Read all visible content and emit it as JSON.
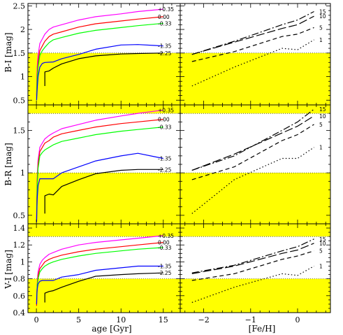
{
  "colors": {
    "band": "#ffff00",
    "metallicity_series": {
      "+0.35": "#ff00ff",
      "0.00": "#ff0000",
      "-0.33": "#00ff00",
      "-1.35": "#0000ff",
      "-2.25": "#000000"
    }
  },
  "chart_data": [
    {
      "type": "line",
      "panel": "B-I vs age",
      "xlabel": "",
      "ylabel": "B-I [mag]",
      "xlim": [
        -1,
        17
      ],
      "ylim": [
        0.4,
        2.55
      ],
      "xticks": [
        0,
        5,
        10,
        15
      ],
      "yticks": [
        0.5,
        1,
        1.5,
        2,
        2.5
      ],
      "ytick_labels": [
        "0.5",
        "1",
        "1.5",
        "2",
        "2.5"
      ],
      "band": [
        0.4,
        1.5
      ],
      "series": [
        {
          "name": "+0.35",
          "color": "#ff00ff",
          "x": [
            0.02,
            0.05,
            0.1,
            0.2,
            0.4,
            0.7,
            1,
            1.5,
            2,
            3,
            5,
            7,
            10,
            12,
            15
          ],
          "y": [
            0.6,
            0.9,
            1.2,
            1.45,
            1.7,
            1.8,
            1.9,
            2.0,
            2.05,
            2.1,
            2.2,
            2.27,
            2.33,
            2.38,
            2.43
          ]
        },
        {
          "name": "0.00",
          "color": "#ff0000",
          "x": [
            0.02,
            0.05,
            0.1,
            0.2,
            0.4,
            0.7,
            1,
            1.5,
            2,
            3,
            5,
            7,
            10,
            12,
            15
          ],
          "y": [
            0.55,
            0.8,
            1.05,
            1.3,
            1.55,
            1.65,
            1.75,
            1.85,
            1.9,
            1.95,
            2.05,
            2.12,
            2.18,
            2.22,
            2.27
          ]
        },
        {
          "name": "-0.33",
          "color": "#00ff00",
          "x": [
            0.02,
            0.05,
            0.1,
            0.2,
            0.4,
            0.7,
            1,
            1.5,
            2,
            3,
            5,
            7,
            10,
            12,
            15
          ],
          "y": [
            0.5,
            0.7,
            0.95,
            1.2,
            1.45,
            1.55,
            1.62,
            1.72,
            1.78,
            1.83,
            1.92,
            1.98,
            2.04,
            2.08,
            2.13
          ]
        },
        {
          "name": "-1.35",
          "color": "#0000ff",
          "x": [
            0.02,
            0.05,
            0.1,
            0.2,
            0.4,
            0.7,
            1,
            2,
            3,
            5,
            7,
            10,
            12,
            14,
            15
          ],
          "y": [
            0.5,
            0.6,
            0.75,
            1.0,
            1.2,
            1.28,
            1.3,
            1.31,
            1.38,
            1.47,
            1.58,
            1.67,
            1.68,
            1.66,
            1.65
          ]
        },
        {
          "name": "-2.25",
          "color": "#000000",
          "x": [
            1,
            1,
            1.5,
            2,
            3,
            5,
            7,
            10,
            12,
            15
          ],
          "y": [
            0.8,
            1.1,
            1.12,
            1.18,
            1.27,
            1.38,
            1.44,
            1.48,
            1.49,
            1.5
          ]
        }
      ]
    },
    {
      "type": "line",
      "panel": "B-I vs [Fe/H]",
      "xlabel": "",
      "ylabel": "",
      "xlim": [
        -2.5,
        0.7
      ],
      "ylim": [
        0.4,
        2.55
      ],
      "xticks": [
        -2,
        -1,
        0
      ],
      "band": [
        0.4,
        1.5
      ],
      "series": [
        {
          "name": "15",
          "dash": "dashdot",
          "x": [
            -2.25,
            -1.35,
            -0.33,
            0,
            0.35
          ],
          "y": [
            1.47,
            1.75,
            2.1,
            2.2,
            2.38
          ]
        },
        {
          "name": "10",
          "dash": "longdash",
          "x": [
            -2.25,
            -1.35,
            -0.33,
            0,
            0.35
          ],
          "y": [
            1.47,
            1.73,
            2.02,
            2.1,
            2.28
          ]
        },
        {
          "name": "5",
          "dash": "dashed",
          "x": [
            -2.25,
            -1.35,
            -0.33,
            0,
            0.35
          ],
          "y": [
            1.32,
            1.53,
            1.85,
            1.9,
            2.04
          ]
        },
        {
          "name": "1",
          "dash": "dotted",
          "x": [
            -2.25,
            -1.35,
            -0.33,
            0,
            0.35
          ],
          "y": [
            0.8,
            1.2,
            1.6,
            1.57,
            1.78
          ]
        }
      ]
    },
    {
      "type": "line",
      "panel": "B-R vs age",
      "xlabel": "",
      "ylabel": "B-R [mag]",
      "xlim": [
        -1,
        17
      ],
      "ylim": [
        0.4,
        1.8
      ],
      "xticks": [
        0,
        5,
        10,
        15
      ],
      "yticks": [
        0.5,
        1,
        1.5
      ],
      "ytick_labels": [
        "0.5",
        "1",
        "1.5"
      ],
      "band": [
        0.4,
        1.0
      ],
      "band_top": [
        1.7,
        1.8
      ],
      "series": [
        {
          "name": "+0.35",
          "color": "#ff00ff",
          "x": [
            0.02,
            0.05,
            0.1,
            0.2,
            0.4,
            0.7,
            1,
            1.5,
            2,
            3,
            5,
            7,
            10,
            12,
            15
          ],
          "y": [
            0.42,
            0.7,
            0.95,
            1.15,
            1.3,
            1.35,
            1.4,
            1.44,
            1.47,
            1.52,
            1.57,
            1.62,
            1.67,
            1.7,
            1.74
          ]
        },
        {
          "name": "0.00",
          "color": "#ff0000",
          "x": [
            0.02,
            0.05,
            0.1,
            0.2,
            0.4,
            0.7,
            1,
            1.5,
            2,
            3,
            5,
            7,
            10,
            12,
            15
          ],
          "y": [
            0.42,
            0.65,
            0.9,
            1.1,
            1.25,
            1.3,
            1.35,
            1.38,
            1.42,
            1.46,
            1.5,
            1.54,
            1.58,
            1.6,
            1.63
          ]
        },
        {
          "name": "-0.33",
          "color": "#00ff00",
          "x": [
            0.02,
            0.05,
            0.1,
            0.2,
            0.4,
            0.7,
            1,
            1.5,
            2,
            3,
            5,
            7,
            10,
            12,
            15
          ],
          "y": [
            0.42,
            0.6,
            0.85,
            1.05,
            1.2,
            1.24,
            1.27,
            1.3,
            1.33,
            1.37,
            1.41,
            1.45,
            1.49,
            1.51,
            1.54
          ]
        },
        {
          "name": "-1.35",
          "color": "#0000ff",
          "x": [
            0.02,
            0.05,
            0.1,
            0.2,
            0.4,
            0.7,
            1,
            2,
            3,
            5,
            7,
            10,
            12,
            14,
            15
          ],
          "y": [
            0.42,
            0.55,
            0.7,
            0.85,
            0.93,
            0.93,
            0.93,
            0.93,
            1.0,
            1.07,
            1.14,
            1.2,
            1.23,
            1.19,
            1.17
          ]
        },
        {
          "name": "-2.25",
          "color": "#000000",
          "x": [
            1,
            1,
            1.5,
            2,
            3,
            5,
            7,
            10,
            12,
            15
          ],
          "y": [
            0.52,
            0.73,
            0.75,
            0.74,
            0.84,
            0.92,
            0.99,
            1.03,
            1.04,
            1.04
          ]
        }
      ]
    },
    {
      "type": "line",
      "panel": "B-R vs [Fe/H]",
      "xlabel": "",
      "ylabel": "",
      "xlim": [
        -2.5,
        0.7
      ],
      "ylim": [
        0.4,
        1.8
      ],
      "xticks": [
        -2,
        -1,
        0
      ],
      "band": [
        0.4,
        1.0
      ],
      "band_top": [
        1.7,
        1.8
      ],
      "series": [
        {
          "name": "15",
          "dash": "dashdot",
          "x": [
            -2.25,
            -1.35,
            -0.33,
            0,
            0.35
          ],
          "y": [
            1.03,
            1.2,
            1.5,
            1.6,
            1.75
          ]
        },
        {
          "name": "10",
          "dash": "longdash",
          "x": [
            -2.25,
            -1.35,
            -0.33,
            0,
            0.35
          ],
          "y": [
            1.03,
            1.22,
            1.47,
            1.55,
            1.67
          ]
        },
        {
          "name": "5",
          "dash": "dashed",
          "x": [
            -2.25,
            -1.35,
            -0.33,
            0,
            0.35
          ],
          "y": [
            0.92,
            1.07,
            1.38,
            1.45,
            1.57
          ]
        },
        {
          "name": "1",
          "dash": "dotted",
          "x": [
            -2.25,
            -1.35,
            -0.33,
            0,
            0.35
          ],
          "y": [
            0.52,
            0.92,
            1.17,
            1.17,
            1.3
          ]
        }
      ]
    },
    {
      "type": "line",
      "panel": "V-I vs age",
      "xlabel": "age [Gyr]",
      "ylabel": "V-I [mag]",
      "xlim": [
        -1,
        17
      ],
      "ylim": [
        0.4,
        1.45
      ],
      "xticks": [
        0,
        5,
        10,
        15
      ],
      "yticks": [
        0.4,
        0.6,
        0.8,
        1,
        1.2,
        1.4
      ],
      "ytick_labels": [
        "0.4",
        "0.6",
        "0.8",
        "1",
        "1.2",
        "1.4"
      ],
      "xtick_labels": [
        "0",
        "5",
        "10",
        "15"
      ],
      "band": [
        0.4,
        0.8
      ],
      "band_top": [
        1.3,
        1.45
      ],
      "series": [
        {
          "name": "+0.35",
          "color": "#ff00ff",
          "x": [
            0.02,
            0.05,
            0.1,
            0.2,
            0.4,
            0.7,
            1,
            1.5,
            2,
            3,
            5,
            7,
            10,
            12,
            15
          ],
          "y": [
            0.5,
            0.62,
            0.75,
            0.88,
            0.97,
            1.02,
            1.05,
            1.09,
            1.11,
            1.15,
            1.2,
            1.23,
            1.26,
            1.28,
            1.31
          ]
        },
        {
          "name": "0.00",
          "color": "#ff0000",
          "x": [
            0.02,
            0.05,
            0.1,
            0.2,
            0.4,
            0.7,
            1,
            1.5,
            2,
            3,
            5,
            7,
            10,
            12,
            15
          ],
          "y": [
            0.48,
            0.6,
            0.72,
            0.84,
            0.92,
            0.96,
            1.0,
            1.03,
            1.05,
            1.08,
            1.12,
            1.15,
            1.18,
            1.2,
            1.23
          ]
        },
        {
          "name": "-0.33",
          "color": "#00ff00",
          "x": [
            0.02,
            0.05,
            0.1,
            0.2,
            0.4,
            0.7,
            1,
            1.5,
            2,
            3,
            5,
            7,
            10,
            12,
            15
          ],
          "y": [
            0.55,
            0.62,
            0.72,
            0.8,
            0.88,
            0.92,
            0.95,
            0.98,
            1.0,
            1.03,
            1.07,
            1.1,
            1.13,
            1.15,
            1.17
          ]
        },
        {
          "name": "-1.35",
          "color": "#0000ff",
          "x": [
            0.02,
            0.05,
            0.1,
            0.2,
            0.4,
            0.7,
            1,
            2,
            3,
            5,
            7,
            10,
            12,
            14,
            15
          ],
          "y": [
            0.5,
            0.6,
            0.68,
            0.74,
            0.77,
            0.78,
            0.78,
            0.78,
            0.82,
            0.85,
            0.9,
            0.93,
            0.95,
            0.95,
            0.95
          ]
        },
        {
          "name": "-2.25",
          "color": "#000000",
          "x": [
            1,
            1,
            1.5,
            2,
            3,
            5,
            7,
            10,
            12,
            15
          ],
          "y": [
            0.52,
            0.63,
            0.65,
            0.66,
            0.7,
            0.77,
            0.83,
            0.85,
            0.86,
            0.87
          ]
        }
      ]
    },
    {
      "type": "line",
      "panel": "V-I vs [Fe/H]",
      "xlabel": "[Fe/H]",
      "ylabel": "",
      "xlim": [
        -2.5,
        0.7
      ],
      "ylim": [
        0.4,
        1.45
      ],
      "xticks": [
        -2,
        -1,
        0
      ],
      "xtick_labels": [
        "−2",
        "−1",
        "0"
      ],
      "band": [
        0.4,
        0.8
      ],
      "band_top": [
        1.3,
        1.45
      ],
      "series": [
        {
          "name": "15",
          "dash": "dashdot",
          "x": [
            -2.25,
            -1.35,
            -0.33,
            0,
            0.35
          ],
          "y": [
            0.87,
            0.96,
            1.13,
            1.18,
            1.27
          ]
        },
        {
          "name": "10",
          "dash": "longdash",
          "x": [
            -2.25,
            -1.35,
            -0.33,
            0,
            0.35
          ],
          "y": [
            0.86,
            0.95,
            1.1,
            1.14,
            1.22
          ]
        },
        {
          "name": "5",
          "dash": "dashed",
          "x": [
            -2.25,
            -1.35,
            -0.33,
            0,
            0.35
          ],
          "y": [
            0.78,
            0.86,
            1.03,
            1.07,
            1.13
          ]
        },
        {
          "name": "1",
          "dash": "dotted",
          "x": [
            -2.25,
            -1.35,
            -0.33,
            0,
            0.35
          ],
          "y": [
            0.52,
            0.7,
            0.86,
            0.84,
            0.95
          ]
        }
      ]
    }
  ],
  "labels": {
    "bi_ylabel": "B-I [mag]",
    "br_ylabel": "B-R [mag]",
    "vi_ylabel": "V-I [mag]",
    "age_xlabel": "age [Gyr]",
    "feh_xlabel": "[Fe/H]",
    "metallicity_labels": [
      "+0.35",
      "0.00",
      "-0.33",
      "-1.35",
      "-2.25"
    ],
    "age_labels": [
      "15",
      "10",
      "5",
      "1"
    ]
  }
}
